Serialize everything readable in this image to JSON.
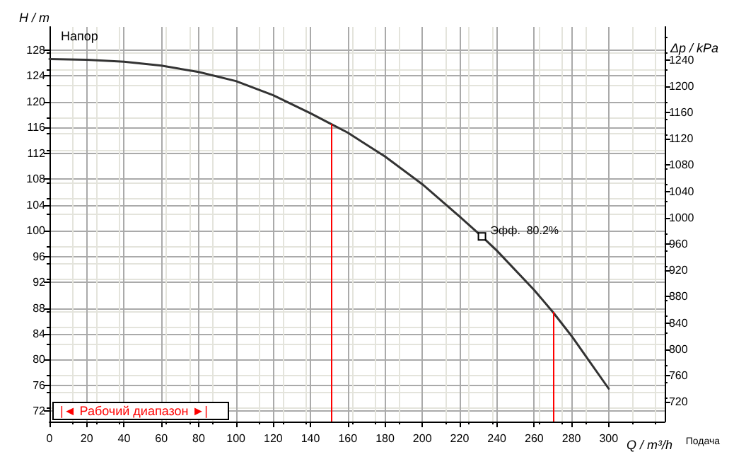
{
  "chart_data": {
    "type": "line",
    "title": "Напор",
    "xlabel": "Q / m³/h",
    "ylabel": "H / m",
    "y2label": "Δp / kPa",
    "annotations": [
      {
        "text": "Эфф.  80.2%",
        "x": 232,
        "y": 99.1
      },
      "|◄ Рабочий диапазон ►|",
      "Подача"
    ],
    "x": [
      0,
      20,
      40,
      60,
      80,
      100,
      120,
      140,
      150,
      160,
      180,
      200,
      220,
      232,
      240,
      260,
      270,
      280,
      300
    ],
    "series": [
      {
        "color": "#333333",
        "values": [
          126.6,
          126.5,
          126.2,
          125.6,
          124.6,
          123.2,
          121,
          118.2,
          116.7,
          115.2,
          111.5,
          107.2,
          102.2,
          99.1,
          96.9,
          90.8,
          87.4,
          83.7,
          75.5
        ]
      }
    ],
    "ref_lines": [
      {
        "axis": "x",
        "value": 151,
        "color": "#ff0000"
      },
      {
        "axis": "x",
        "value": 270,
        "color": "#ff0000"
      }
    ],
    "xlim": [
      0,
      330
    ],
    "xticks": [
      0,
      20,
      40,
      60,
      80,
      100,
      120,
      140,
      160,
      180,
      200,
      220,
      240,
      260,
      280,
      300
    ],
    "ylim": [
      70.4,
      131.6
    ],
    "yticks": [
      72,
      76,
      80,
      84,
      88,
      92,
      96,
      100,
      104,
      108,
      112,
      116,
      120,
      124,
      128
    ],
    "y2lim": [
      690,
      1290
    ],
    "y2ticks": [
      720,
      760,
      800,
      840,
      880,
      920,
      960,
      1000,
      1040,
      1080,
      1120,
      1160,
      1200,
      1240
    ],
    "grid": true,
    "marker": "none",
    "line_style": "solid"
  }
}
